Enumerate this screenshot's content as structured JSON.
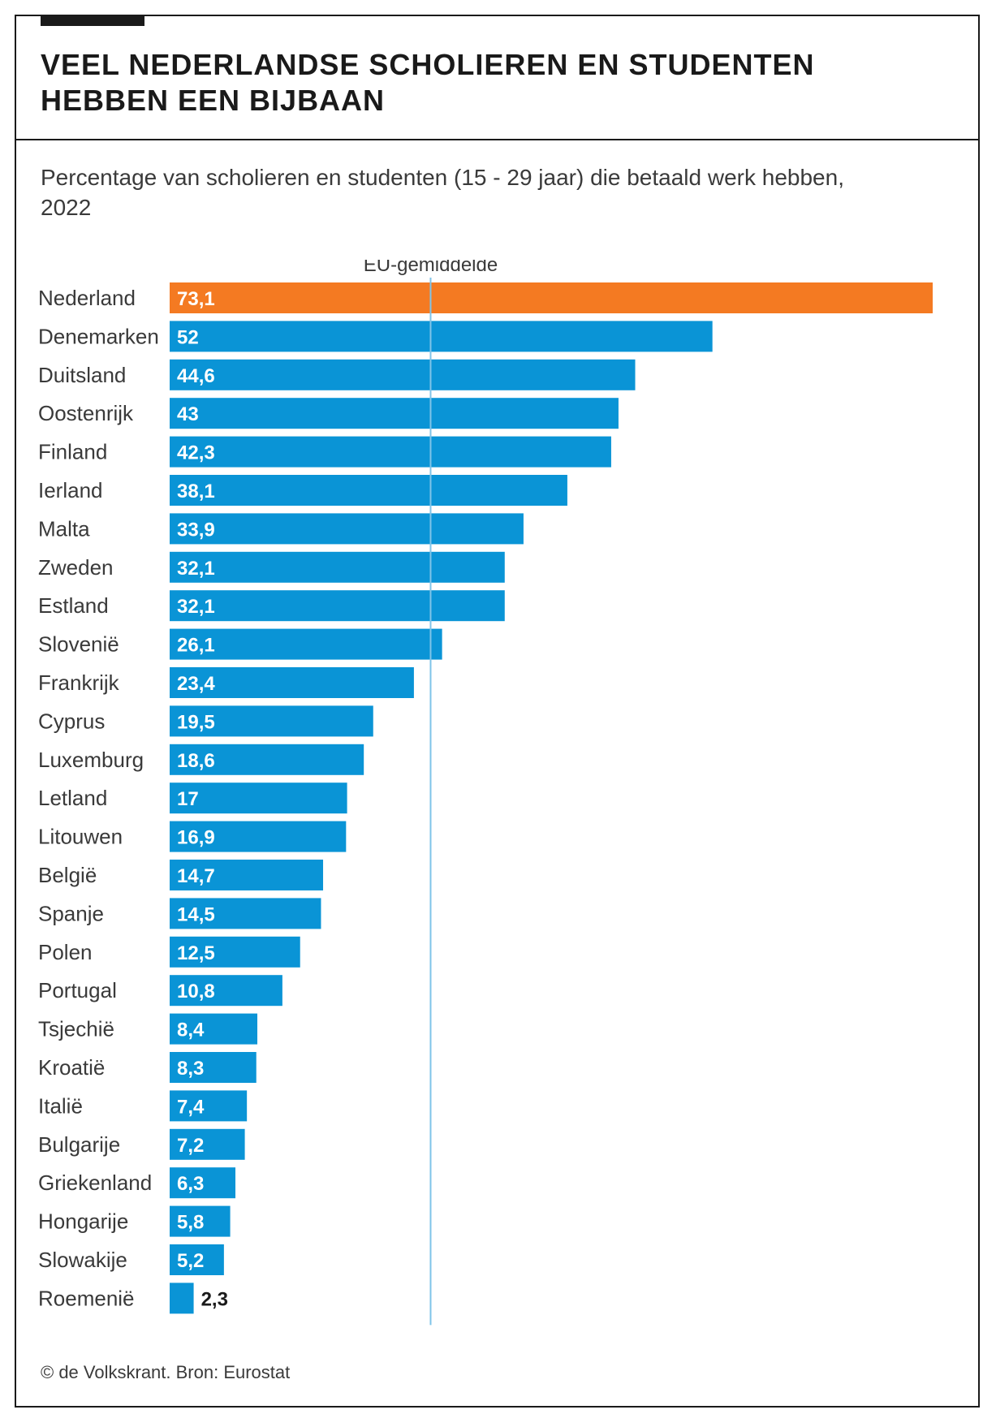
{
  "colors": {
    "highlight": "#f47a22",
    "bar": "#0a94d6",
    "average_line": "#7fc4e8"
  },
  "chart_data": {
    "type": "bar",
    "orientation": "horizontal",
    "title": "VEEL NEDERLANDSE SCHOLIEREN EN STUDENTEN HEBBEN EEN BIJBAAN",
    "subtitle": "Percentage van scholieren en studenten (15 - 29 jaar) die betaald werk hebben, 2022",
    "source": "© de Volkskrant. Bron: Eurostat",
    "average_label": "EU-gemiddelde",
    "average_value": 25,
    "highlight_category": "Nederland",
    "xlim": [
      0,
      73.1
    ],
    "categories": [
      "Nederland",
      "Denemarken",
      "Duitsland",
      "Oostenrijk",
      "Finland",
      "Ierland",
      "Malta",
      "Zweden",
      "Estland",
      "Slovenië",
      "Frankrijk",
      "Cyprus",
      "Luxemburg",
      "Letland",
      "Litouwen",
      "België",
      "Spanje",
      "Polen",
      "Portugal",
      "Tsjechië",
      "Kroatië",
      "Italië",
      "Bulgarije",
      "Griekenland",
      "Hongarije",
      "Slowakije",
      "Roemenië"
    ],
    "values": [
      73.1,
      52,
      44.6,
      43,
      42.3,
      38.1,
      33.9,
      32.1,
      32.1,
      26.1,
      23.4,
      19.5,
      18.6,
      17,
      16.9,
      14.7,
      14.5,
      12.5,
      10.8,
      8.4,
      8.3,
      7.4,
      7.2,
      6.3,
      5.8,
      5.2,
      2.3
    ],
    "value_labels": [
      "73,1",
      "52",
      "44,6",
      "43",
      "42,3",
      "38,1",
      "33,9",
      "32,1",
      "32,1",
      "26,1",
      "23,4",
      "19,5",
      "18,6",
      "17",
      "16,9",
      "14,7",
      "14,5",
      "12,5",
      "10,8",
      "8,4",
      "8,3",
      "7,4",
      "7,2",
      "6,3",
      "5,8",
      "5,2",
      "2,3"
    ]
  }
}
